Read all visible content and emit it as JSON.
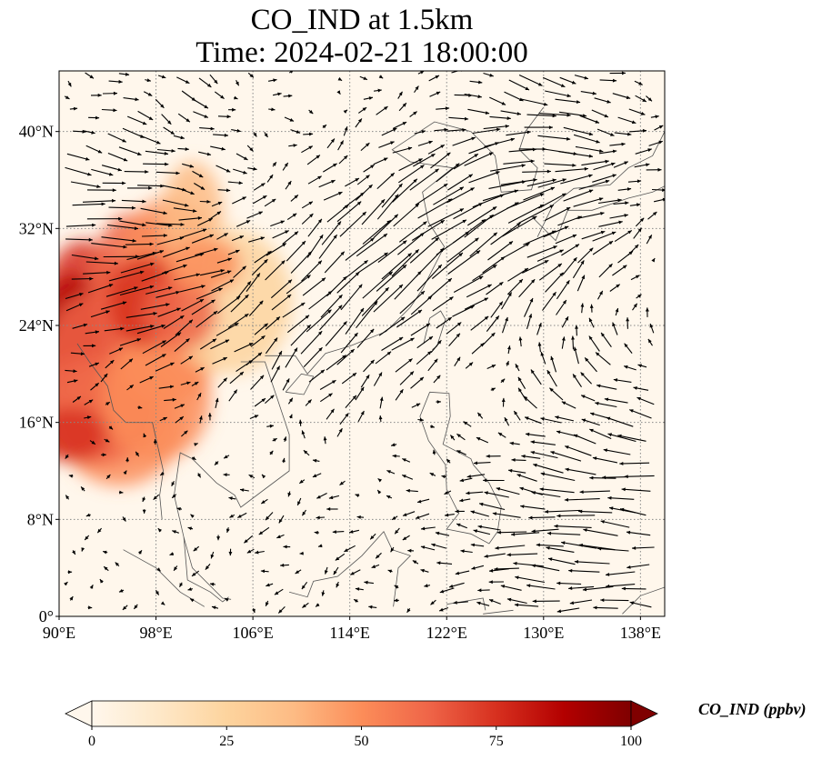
{
  "title": {
    "line1": "CO_IND at 1.5km",
    "line2": "Time: 2024-02-21 18:00:00"
  },
  "map": {
    "extent": {
      "lon_min": 90,
      "lon_max": 140,
      "lat_min": 0,
      "lat_max": 45
    },
    "lon_ticks": [
      90,
      98,
      106,
      114,
      122,
      130,
      138
    ],
    "lon_tick_labels": [
      "90°E",
      "98°E",
      "106°E",
      "114°E",
      "122°E",
      "130°E",
      "138°E"
    ],
    "lat_ticks": [
      0,
      8,
      16,
      24,
      32,
      40
    ],
    "lat_tick_labels": [
      "0°",
      "8°N",
      "16°N",
      "24°N",
      "32°N",
      "40°N"
    ],
    "gridlines": true,
    "field": "CO_IND",
    "units": "ppbv",
    "vectors": "wind"
  },
  "colorbar": {
    "label": "CO_IND (ppbv)",
    "ticks": [
      0,
      25,
      50,
      75,
      100
    ],
    "tick_labels": [
      "0",
      "25",
      "50",
      "75",
      "100"
    ],
    "colormap": "OrRd",
    "extend": "both",
    "colors": [
      "#fff7ec",
      "#fee8c8",
      "#fdd49e",
      "#fdbb84",
      "#fc8d59",
      "#ef6548",
      "#d7301f",
      "#b30000",
      "#7f0000"
    ]
  },
  "colors": {
    "background": "#fff7ec",
    "arrow": "#000000",
    "grid": "#888888"
  }
}
